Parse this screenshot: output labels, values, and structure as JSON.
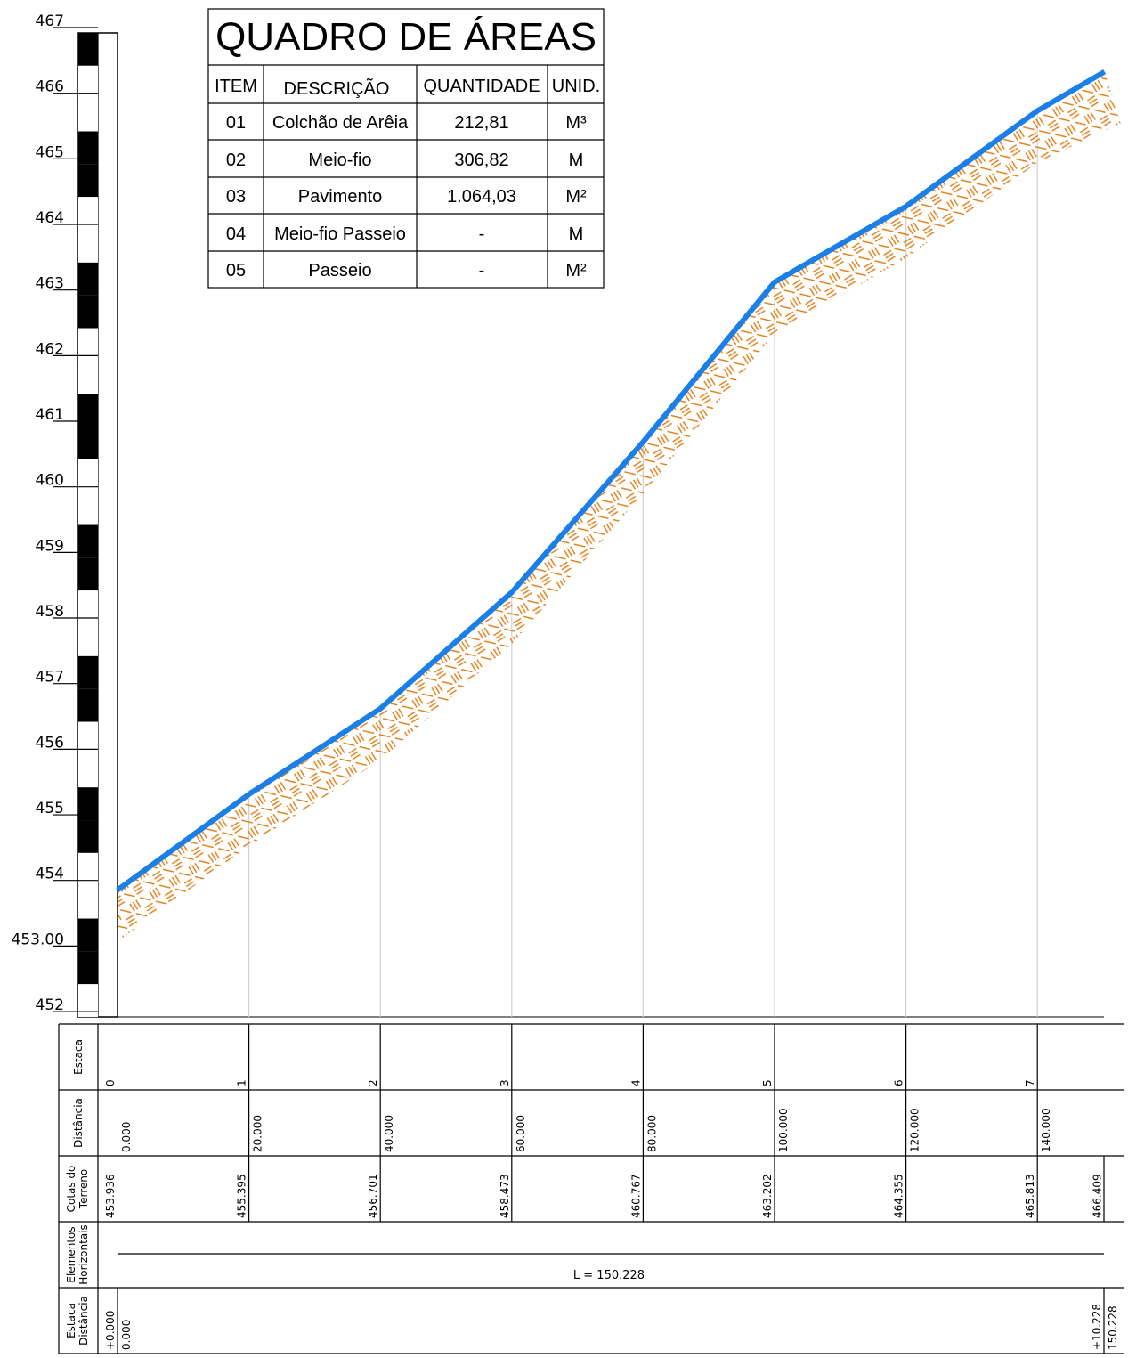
{
  "quadro": {
    "title": "QUADRO DE ÁREAS",
    "headers": [
      "ITEM",
      "DESCRIÇÃO",
      "QUANTIDADE",
      "UNID."
    ],
    "rows": [
      {
        "item": "01",
        "descricao": "Colchão de Arêia",
        "quantidade": "212,81",
        "unid": "M³"
      },
      {
        "item": "02",
        "descricao": "Meio-fio",
        "quantidade": "306,82",
        "unid": "M"
      },
      {
        "item": "03",
        "descricao": "Pavimento",
        "quantidade": "1.064,03",
        "unid": "M²"
      },
      {
        "item": "04",
        "descricao": "Meio-fio Passeio",
        "quantidade": "-",
        "unid": "M"
      },
      {
        "item": "05",
        "descricao": "Passeio",
        "quantidade": "-",
        "unid": "M²"
      }
    ]
  },
  "scale": {
    "labels": [
      "467",
      "466",
      "465",
      "464",
      "463",
      "462",
      "461",
      "460",
      "459",
      "458",
      "457",
      "456",
      "455",
      "454",
      "453.00",
      "452"
    ]
  },
  "profile": {
    "line_color": "#1a7fe6",
    "hatch_color": "#e07a10",
    "distances": [
      0,
      20,
      40,
      60,
      80,
      100,
      120,
      140,
      150.228
    ],
    "elevations": [
      453.936,
      455.395,
      456.701,
      458.473,
      460.767,
      463.202,
      464.355,
      465.813,
      466.409
    ]
  },
  "bands": {
    "row_labels": {
      "estaca": "Estaca",
      "distancia": "Distância",
      "cotas_1": "Cotas do",
      "cotas_2": "Terreno",
      "elementos_1": "Elementos",
      "elementos_2": "Horizontais",
      "ed_1": "Estaca",
      "ed_2": "Distância"
    },
    "estacas": [
      "0",
      "1",
      "2",
      "3",
      "4",
      "5",
      "6",
      "7"
    ],
    "distancias": [
      "0.000",
      "20.000",
      "40.000",
      "60.000",
      "80.000",
      "100.000",
      "120.000",
      "140.000"
    ],
    "cotas": [
      "453.936",
      "455.395",
      "456.701",
      "458.473",
      "460.767",
      "463.202",
      "464.355",
      "465.813",
      "466.409"
    ],
    "elementos_label": "L = 150.228",
    "start_estaca": "+0.000",
    "start_dist": "0.000",
    "end_estaca": "+10.228",
    "end_dist": "150.228"
  }
}
